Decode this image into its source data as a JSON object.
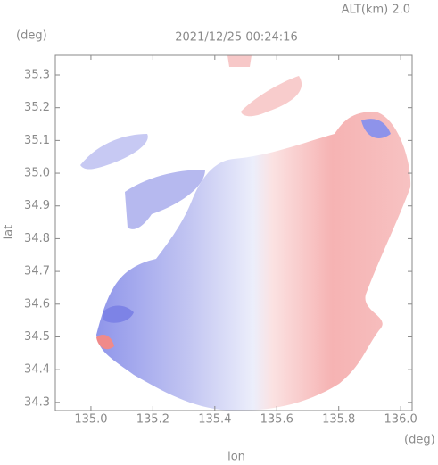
{
  "chart_data": {
    "type": "map",
    "annotation": "ALT(km) 2.0",
    "title": "2021/12/25 00:24:16",
    "y_unit": "(deg)",
    "x_unit": "(deg)",
    "y_label": "lat",
    "x_label": "lon",
    "xlim": [
      134.885,
      136.037
    ],
    "ylim": [
      34.275,
      35.36
    ],
    "xticks": [
      {
        "value": 135.0,
        "label": "135.0"
      },
      135.2,
      135.4,
      135.6,
      135.8,
      {
        "value": 136.0,
        "label": "136.0"
      }
    ],
    "yticks": [
      34.3,
      34.4,
      34.5,
      34.6,
      34.7,
      34.8,
      34.9,
      {
        "value": 35.0,
        "label": "35.0"
      },
      35.1,
      35.2,
      35.3
    ]
  }
}
